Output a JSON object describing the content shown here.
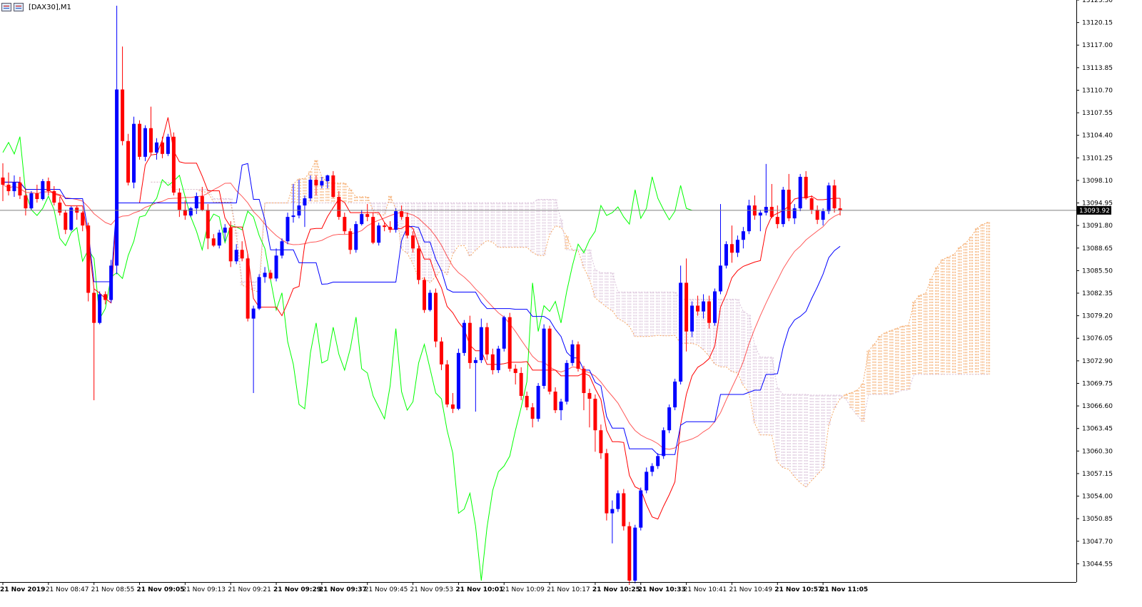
{
  "window": {
    "title": "[DAX30],M1",
    "icons": [
      "chart-grid-icon",
      "bar-chart-icon"
    ]
  },
  "chart_data": {
    "type": "candlestick",
    "title": "[DAX30],M1",
    "symbol": "DAX30",
    "timeframe": "M1",
    "current_price": "13093.92",
    "current_price_value": 13093.92,
    "ylim": [
      13042.0,
      13123.3
    ],
    "y_ticks": [
      "13123.30",
      "13120.15",
      "13117.00",
      "13113.85",
      "13110.70",
      "13107.55",
      "13104.40",
      "13101.25",
      "13098.10",
      "13094.95",
      "13091.80",
      "13088.65",
      "13085.50",
      "13082.35",
      "13079.20",
      "13076.05",
      "13072.90",
      "13069.75",
      "13066.60",
      "13063.45",
      "13060.30",
      "13057.15",
      "13054.00",
      "13050.85",
      "13047.70",
      "13044.55"
    ],
    "x_ticks": [
      {
        "label": "21 Nov 2019",
        "index": 0
      },
      {
        "label": "21 Nov 08:47",
        "index": 8
      },
      {
        "label": "21 Nov 08:55",
        "index": 16
      },
      {
        "label": "21 Nov 09:05",
        "index": 24
      },
      {
        "label": "21 Nov 09:13",
        "index": 32
      },
      {
        "label": "21 Nov 09:21",
        "index": 40
      },
      {
        "label": "21 Nov 09:29",
        "index": 48
      },
      {
        "label": "21 Nov 09:37",
        "index": 56
      },
      {
        "label": "21 Nov 09:45",
        "index": 64
      },
      {
        "label": "21 Nov 09:53",
        "index": 72
      },
      {
        "label": "21 Nov 10:01",
        "index": 80
      },
      {
        "label": "21 Nov 10:09",
        "index": 88
      },
      {
        "label": "21 Nov 10:17",
        "index": 96
      },
      {
        "label": "21 Nov 10:25",
        "index": 104
      },
      {
        "label": "21 Nov 10:33",
        "index": 112
      },
      {
        "label": "21 Nov 10:41",
        "index": 120
      },
      {
        "label": "21 Nov 10:49",
        "index": 128
      },
      {
        "label": "21 Nov 10:57",
        "index": 136
      },
      {
        "label": "21 Nov 11:05",
        "index": 144
      }
    ],
    "bold_tick_indices": [
      0,
      24,
      48,
      56,
      80,
      104,
      112,
      136,
      144
    ],
    "colors": {
      "bull": "#0000ff",
      "bear": "#ff0000",
      "tenkan": "#ff0000",
      "kijun": "#0000ff",
      "chikou": "#00ff00",
      "ma": "#ff0000",
      "cloud_bull": "#f4a460",
      "cloud_bear": "#d8bfd8",
      "price_line": "#808080",
      "price_label_bg": "#000000",
      "price_label_text": "#ffffff"
    },
    "candles": [
      {
        "o": 13098.5,
        "h": 13100.5,
        "l": 13095.2,
        "c": 13097.5
      },
      {
        "o": 13097.5,
        "h": 13099.2,
        "l": 13096.0,
        "c": 13096.6
      },
      {
        "o": 13096.6,
        "h": 13098.8,
        "l": 13095.8,
        "c": 13097.8
      },
      {
        "o": 13097.8,
        "h": 13098.6,
        "l": 13095.5,
        "c": 13096.0
      },
      {
        "o": 13096.0,
        "h": 13097.0,
        "l": 13093.2,
        "c": 13094.2
      },
      {
        "o": 13094.2,
        "h": 13096.6,
        "l": 13094.0,
        "c": 13096.3
      },
      {
        "o": 13096.3,
        "h": 13097.5,
        "l": 13095.0,
        "c": 13095.5
      },
      {
        "o": 13095.5,
        "h": 13098.3,
        "l": 13095.3,
        "c": 13098.0
      },
      {
        "o": 13098.0,
        "h": 13098.5,
        "l": 13096.0,
        "c": 13096.6
      },
      {
        "o": 13096.6,
        "h": 13097.3,
        "l": 13094.6,
        "c": 13095.0
      },
      {
        "o": 13095.0,
        "h": 13095.8,
        "l": 13093.2,
        "c": 13093.6
      },
      {
        "o": 13093.6,
        "h": 13094.0,
        "l": 13090.6,
        "c": 13091.2
      },
      {
        "o": 13091.2,
        "h": 13094.5,
        "l": 13091.0,
        "c": 13094.3
      },
      {
        "o": 13094.3,
        "h": 13094.6,
        "l": 13092.6,
        "c": 13093.6
      },
      {
        "o": 13093.6,
        "h": 13093.8,
        "l": 13091.0,
        "c": 13091.8
      },
      {
        "o": 13091.8,
        "h": 13092.2,
        "l": 13081.2,
        "c": 13082.4
      },
      {
        "o": 13082.4,
        "h": 13083.0,
        "l": 13067.4,
        "c": 13078.2
      },
      {
        "o": 13078.2,
        "h": 13082.6,
        "l": 13078.0,
        "c": 13082.2
      },
      {
        "o": 13082.2,
        "h": 13082.6,
        "l": 13080.8,
        "c": 13081.4
      },
      {
        "o": 13081.4,
        "h": 13087.0,
        "l": 13081.0,
        "c": 13086.2
      },
      {
        "o": 13086.2,
        "h": 13122.5,
        "l": 13085.0,
        "c": 13110.8
      },
      {
        "o": 13110.8,
        "h": 13116.8,
        "l": 13103.0,
        "c": 13103.6
      },
      {
        "o": 13103.6,
        "h": 13104.6,
        "l": 13097.4,
        "c": 13097.8
      },
      {
        "o": 13097.8,
        "h": 13107.0,
        "l": 13097.0,
        "c": 13106.0
      },
      {
        "o": 13106.0,
        "h": 13106.5,
        "l": 13101.0,
        "c": 13101.4
      },
      {
        "o": 13101.4,
        "h": 13105.8,
        "l": 13100.8,
        "c": 13105.4
      },
      {
        "o": 13105.4,
        "h": 13108.4,
        "l": 13101.6,
        "c": 13102.0
      },
      {
        "o": 13102.0,
        "h": 13104.0,
        "l": 13101.0,
        "c": 13103.4
      },
      {
        "o": 13103.4,
        "h": 13104.2,
        "l": 13101.2,
        "c": 13101.8
      },
      {
        "o": 13101.8,
        "h": 13104.6,
        "l": 13101.5,
        "c": 13104.2
      },
      {
        "o": 13104.2,
        "h": 13104.8,
        "l": 13096.0,
        "c": 13096.4
      },
      {
        "o": 13096.4,
        "h": 13097.0,
        "l": 13093.0,
        "c": 13094.0
      },
      {
        "o": 13094.0,
        "h": 13095.3,
        "l": 13092.6,
        "c": 13093.2
      },
      {
        "o": 13093.2,
        "h": 13094.4,
        "l": 13093.0,
        "c": 13094.2
      },
      {
        "o": 13094.2,
        "h": 13096.4,
        "l": 13093.4,
        "c": 13095.9
      },
      {
        "o": 13095.9,
        "h": 13097.2,
        "l": 13093.8,
        "c": 13094.0
      },
      {
        "o": 13094.0,
        "h": 13094.8,
        "l": 13088.5,
        "c": 13090.0
      },
      {
        "o": 13090.0,
        "h": 13090.6,
        "l": 13088.8,
        "c": 13089.0
      },
      {
        "o": 13089.0,
        "h": 13091.2,
        "l": 13088.6,
        "c": 13090.8
      },
      {
        "o": 13090.8,
        "h": 13092.0,
        "l": 13089.6,
        "c": 13091.5
      },
      {
        "o": 13091.5,
        "h": 13092.4,
        "l": 13086.0,
        "c": 13086.8
      },
      {
        "o": 13086.8,
        "h": 13089.2,
        "l": 13086.4,
        "c": 13088.4
      },
      {
        "o": 13088.4,
        "h": 13089.6,
        "l": 13086.8,
        "c": 13087.2
      },
      {
        "o": 13087.2,
        "h": 13087.8,
        "l": 13078.4,
        "c": 13078.8
      },
      {
        "o": 13078.8,
        "h": 13080.6,
        "l": 13068.4,
        "c": 13080.2
      },
      {
        "o": 13080.2,
        "h": 13085.0,
        "l": 13080.0,
        "c": 13084.6
      },
      {
        "o": 13084.6,
        "h": 13086.0,
        "l": 13083.8,
        "c": 13085.2
      },
      {
        "o": 13085.2,
        "h": 13085.6,
        "l": 13084.2,
        "c": 13084.4
      },
      {
        "o": 13084.4,
        "h": 13088.6,
        "l": 13084.0,
        "c": 13087.6
      },
      {
        "o": 13087.6,
        "h": 13090.0,
        "l": 13087.2,
        "c": 13089.6
      },
      {
        "o": 13089.6,
        "h": 13093.6,
        "l": 13089.2,
        "c": 13093.0
      },
      {
        "o": 13093.0,
        "h": 13097.6,
        "l": 13092.2,
        "c": 13093.2
      },
      {
        "o": 13093.2,
        "h": 13098.2,
        "l": 13092.8,
        "c": 13094.6
      },
      {
        "o": 13094.6,
        "h": 13096.0,
        "l": 13091.6,
        "c": 13095.6
      },
      {
        "o": 13095.6,
        "h": 13098.8,
        "l": 13095.2,
        "c": 13098.2
      },
      {
        "o": 13098.2,
        "h": 13098.8,
        "l": 13096.0,
        "c": 13097.4
      },
      {
        "o": 13097.4,
        "h": 13098.6,
        "l": 13097.0,
        "c": 13098.0
      },
      {
        "o": 13098.0,
        "h": 13098.9,
        "l": 13097.0,
        "c": 13098.8
      },
      {
        "o": 13098.8,
        "h": 13099.4,
        "l": 13095.6,
        "c": 13095.8
      },
      {
        "o": 13095.8,
        "h": 13096.6,
        "l": 13092.6,
        "c": 13093.0
      },
      {
        "o": 13093.0,
        "h": 13093.6,
        "l": 13090.6,
        "c": 13091.0
      },
      {
        "o": 13091.0,
        "h": 13091.4,
        "l": 13087.8,
        "c": 13088.4
      },
      {
        "o": 13088.4,
        "h": 13092.4,
        "l": 13088.0,
        "c": 13092.0
      },
      {
        "o": 13092.0,
        "h": 13094.0,
        "l": 13091.8,
        "c": 13093.4
      },
      {
        "o": 13093.4,
        "h": 13094.8,
        "l": 13092.4,
        "c": 13093.0
      },
      {
        "o": 13093.0,
        "h": 13093.6,
        "l": 13089.2,
        "c": 13089.4
      },
      {
        "o": 13089.4,
        "h": 13092.2,
        "l": 13089.0,
        "c": 13091.8
      },
      {
        "o": 13091.8,
        "h": 13092.2,
        "l": 13091.0,
        "c": 13091.6
      },
      {
        "o": 13091.6,
        "h": 13092.4,
        "l": 13090.8,
        "c": 13091.2
      },
      {
        "o": 13091.2,
        "h": 13094.2,
        "l": 13090.8,
        "c": 13093.8
      },
      {
        "o": 13093.8,
        "h": 13094.6,
        "l": 13092.6,
        "c": 13093.0
      },
      {
        "o": 13093.0,
        "h": 13093.6,
        "l": 13090.0,
        "c": 13090.4
      },
      {
        "o": 13090.4,
        "h": 13091.0,
        "l": 13088.0,
        "c": 13088.6
      },
      {
        "o": 13088.6,
        "h": 13089.0,
        "l": 13083.6,
        "c": 13084.2
      },
      {
        "o": 13084.2,
        "h": 13084.6,
        "l": 13079.6,
        "c": 13080.0
      },
      {
        "o": 13080.0,
        "h": 13082.8,
        "l": 13079.8,
        "c": 13082.4
      },
      {
        "o": 13082.4,
        "h": 13083.0,
        "l": 13074.8,
        "c": 13075.6
      },
      {
        "o": 13075.6,
        "h": 13076.2,
        "l": 13071.6,
        "c": 13072.4
      },
      {
        "o": 13072.4,
        "h": 13073.0,
        "l": 13066.4,
        "c": 13066.8
      },
      {
        "o": 13066.8,
        "h": 13068.4,
        "l": 13065.6,
        "c": 13066.2
      },
      {
        "o": 13066.2,
        "h": 13074.6,
        "l": 13066.0,
        "c": 13074.0
      },
      {
        "o": 13074.0,
        "h": 13078.6,
        "l": 13073.6,
        "c": 13078.2
      },
      {
        "o": 13078.2,
        "h": 13079.2,
        "l": 13071.8,
        "c": 13072.6
      },
      {
        "o": 13072.6,
        "h": 13073.4,
        "l": 13065.8,
        "c": 13073.0
      },
      {
        "o": 13073.0,
        "h": 13078.8,
        "l": 13072.6,
        "c": 13077.6
      },
      {
        "o": 13077.6,
        "h": 13078.2,
        "l": 13073.0,
        "c": 13073.8
      },
      {
        "o": 13073.8,
        "h": 13074.6,
        "l": 13071.0,
        "c": 13071.6
      },
      {
        "o": 13071.6,
        "h": 13075.0,
        "l": 13071.2,
        "c": 13074.6
      },
      {
        "o": 13074.6,
        "h": 13079.2,
        "l": 13074.2,
        "c": 13079.0
      },
      {
        "o": 13079.0,
        "h": 13079.6,
        "l": 13071.4,
        "c": 13071.8
      },
      {
        "o": 13071.8,
        "h": 13072.4,
        "l": 13069.6,
        "c": 13071.2
      },
      {
        "o": 13071.2,
        "h": 13072.0,
        "l": 13067.4,
        "c": 13068.0
      },
      {
        "o": 13068.0,
        "h": 13068.6,
        "l": 13066.0,
        "c": 13066.4
      },
      {
        "o": 13066.4,
        "h": 13067.0,
        "l": 13063.6,
        "c": 13064.8
      },
      {
        "o": 13064.8,
        "h": 13069.8,
        "l": 13064.4,
        "c": 13069.4
      },
      {
        "o": 13069.4,
        "h": 13078.0,
        "l": 13069.0,
        "c": 13077.4
      },
      {
        "o": 13077.4,
        "h": 13077.8,
        "l": 13068.2,
        "c": 13068.6
      },
      {
        "o": 13068.6,
        "h": 13069.2,
        "l": 13065.6,
        "c": 13066.0
      },
      {
        "o": 13066.0,
        "h": 13067.6,
        "l": 13064.6,
        "c": 13067.2
      },
      {
        "o": 13067.2,
        "h": 13073.0,
        "l": 13066.8,
        "c": 13072.6
      },
      {
        "o": 13072.6,
        "h": 13075.8,
        "l": 13072.2,
        "c": 13075.2
      },
      {
        "o": 13075.2,
        "h": 13075.6,
        "l": 13071.4,
        "c": 13071.8
      },
      {
        "o": 13071.8,
        "h": 13072.2,
        "l": 13066.0,
        "c": 13068.4
      },
      {
        "o": 13068.4,
        "h": 13069.0,
        "l": 13063.6,
        "c": 13067.6
      },
      {
        "o": 13067.6,
        "h": 13068.2,
        "l": 13060.2,
        "c": 13063.2
      },
      {
        "o": 13063.2,
        "h": 13064.0,
        "l": 13059.2,
        "c": 13060.0
      },
      {
        "o": 13060.0,
        "h": 13060.6,
        "l": 13050.6,
        "c": 13051.6
      },
      {
        "o": 13051.6,
        "h": 13053.4,
        "l": 13047.4,
        "c": 13052.2
      },
      {
        "o": 13052.2,
        "h": 13054.8,
        "l": 13051.8,
        "c": 13054.4
      },
      {
        "o": 13054.4,
        "h": 13055.0,
        "l": 13049.2,
        "c": 13049.8
      },
      {
        "o": 13049.8,
        "h": 13050.4,
        "l": 13041.6,
        "c": 13042.2
      },
      {
        "o": 13042.2,
        "h": 13050.0,
        "l": 13041.8,
        "c": 13049.6
      },
      {
        "o": 13049.6,
        "h": 13055.2,
        "l": 13049.2,
        "c": 13054.8
      },
      {
        "o": 13054.8,
        "h": 13058.0,
        "l": 13054.4,
        "c": 13057.4
      },
      {
        "o": 13057.4,
        "h": 13058.6,
        "l": 13056.8,
        "c": 13058.2
      },
      {
        "o": 13058.2,
        "h": 13060.0,
        "l": 13057.8,
        "c": 13059.6
      },
      {
        "o": 13059.6,
        "h": 13063.6,
        "l": 13059.2,
        "c": 13063.2
      },
      {
        "o": 13063.2,
        "h": 13066.8,
        "l": 13062.8,
        "c": 13066.4
      },
      {
        "o": 13066.4,
        "h": 13070.4,
        "l": 13066.0,
        "c": 13070.0
      },
      {
        "o": 13070.0,
        "h": 13086.2,
        "l": 13069.6,
        "c": 13083.8
      },
      {
        "o": 13083.8,
        "h": 13087.2,
        "l": 13074.2,
        "c": 13077.0
      },
      {
        "o": 13077.0,
        "h": 13081.2,
        "l": 13076.2,
        "c": 13080.6
      },
      {
        "o": 13080.6,
        "h": 13082.0,
        "l": 13079.2,
        "c": 13079.8
      },
      {
        "o": 13079.8,
        "h": 13082.2,
        "l": 13078.8,
        "c": 13081.2
      },
      {
        "o": 13081.2,
        "h": 13082.0,
        "l": 13077.4,
        "c": 13078.2
      },
      {
        "o": 13078.2,
        "h": 13083.0,
        "l": 13077.8,
        "c": 13082.6
      },
      {
        "o": 13082.6,
        "h": 13094.8,
        "l": 13082.2,
        "c": 13086.2
      },
      {
        "o": 13086.2,
        "h": 13089.6,
        "l": 13085.8,
        "c": 13089.2
      },
      {
        "o": 13089.2,
        "h": 13091.8,
        "l": 13086.6,
        "c": 13088.0
      },
      {
        "o": 13088.0,
        "h": 13090.4,
        "l": 13087.4,
        "c": 13089.8
      },
      {
        "o": 13089.8,
        "h": 13091.6,
        "l": 13088.6,
        "c": 13091.0
      },
      {
        "o": 13091.0,
        "h": 13095.4,
        "l": 13090.6,
        "c": 13094.6
      },
      {
        "o": 13094.6,
        "h": 13096.0,
        "l": 13092.6,
        "c": 13093.2
      },
      {
        "o": 13093.2,
        "h": 13094.0,
        "l": 13091.0,
        "c": 13093.6
      },
      {
        "o": 13093.6,
        "h": 13100.4,
        "l": 13093.2,
        "c": 13094.4
      },
      {
        "o": 13094.4,
        "h": 13097.6,
        "l": 13092.8,
        "c": 13093.0
      },
      {
        "o": 13093.0,
        "h": 13094.6,
        "l": 13091.4,
        "c": 13092.0
      },
      {
        "o": 13092.0,
        "h": 13097.2,
        "l": 13091.6,
        "c": 13096.8
      },
      {
        "o": 13096.8,
        "h": 13099.0,
        "l": 13092.4,
        "c": 13092.8
      },
      {
        "o": 13092.8,
        "h": 13094.8,
        "l": 13092.0,
        "c": 13094.2
      },
      {
        "o": 13094.2,
        "h": 13099.0,
        "l": 13093.8,
        "c": 13098.6
      },
      {
        "o": 13098.6,
        "h": 13099.4,
        "l": 13095.4,
        "c": 13095.6
      },
      {
        "o": 13095.6,
        "h": 13096.0,
        "l": 13093.4,
        "c": 13094.0
      },
      {
        "o": 13094.0,
        "h": 13094.6,
        "l": 13092.0,
        "c": 13092.6
      },
      {
        "o": 13092.6,
        "h": 13094.2,
        "l": 13091.8,
        "c": 13093.8
      },
      {
        "o": 13093.8,
        "h": 13097.8,
        "l": 13093.4,
        "c": 13097.4
      },
      {
        "o": 13097.4,
        "h": 13098.2,
        "l": 13093.6,
        "c": 13094.2
      },
      {
        "o": 13094.2,
        "h": 13095.6,
        "l": 13093.2,
        "c": 13093.92
      }
    ],
    "ichimoku": {
      "tenkan": 9,
      "kijun": 26,
      "senkou_b": 52,
      "shift": 26
    },
    "ma_period": 21
  }
}
